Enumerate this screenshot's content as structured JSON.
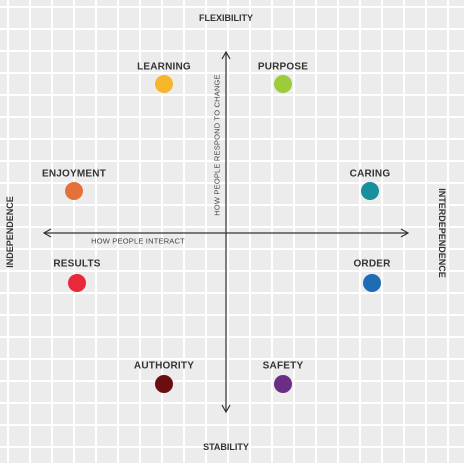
{
  "axes": {
    "top": "FLEXIBILITY",
    "bottom": "STABILITY",
    "left": "INDEPENDENCE",
    "right": "INTERDEPENDENCE",
    "vertical_caption": "HOW PEOPLE RESPOND TO CHANGE",
    "horizontal_caption": "HOW PEOPLE INTERACT"
  },
  "styles": [
    {
      "label": "LEARNING",
      "color": "#f6b52a"
    },
    {
      "label": "PURPOSE",
      "color": "#9ccc3c"
    },
    {
      "label": "ENJOYMENT",
      "color": "#e4713a"
    },
    {
      "label": "CARING",
      "color": "#17909b"
    },
    {
      "label": "RESULTS",
      "color": "#e8293c"
    },
    {
      "label": "ORDER",
      "color": "#1e6cb5"
    },
    {
      "label": "AUTHORITY",
      "color": "#6b0e12"
    },
    {
      "label": "SAFETY",
      "color": "#6a2e84"
    }
  ]
}
